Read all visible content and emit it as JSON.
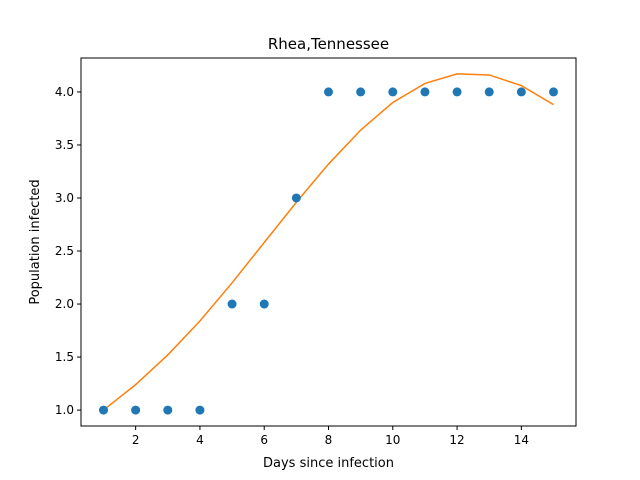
{
  "chart_data": {
    "type": "scatter",
    "title": "Rhea,Tennessee",
    "xlabel": "Days since infection",
    "ylabel": "Population infected",
    "xlim": [
      0.3,
      15.7
    ],
    "ylim": [
      0.85,
      4.32
    ],
    "xticks": [
      2,
      4,
      6,
      8,
      10,
      12,
      14
    ],
    "yticks": [
      1.0,
      1.5,
      2.0,
      2.5,
      3.0,
      3.5,
      4.0
    ],
    "xtick_labels": [
      "2",
      "4",
      "6",
      "8",
      "10",
      "12",
      "14"
    ],
    "ytick_labels": [
      "1.0",
      "1.5",
      "2.0",
      "2.5",
      "3.0",
      "3.5",
      "4.0"
    ],
    "grid": false,
    "legend": "none",
    "series": [
      {
        "type": "scatter",
        "color": "#1f77b4",
        "x": [
          1,
          2,
          3,
          4,
          5,
          6,
          7,
          8,
          9,
          10,
          11,
          12,
          13,
          14,
          15
        ],
        "y": [
          1,
          1,
          1,
          1,
          2,
          2,
          3,
          4,
          4,
          4,
          4,
          4,
          4,
          4,
          4
        ]
      },
      {
        "type": "line",
        "color": "#ff7f0e",
        "x": [
          1,
          2,
          3,
          4,
          5,
          6,
          7,
          8,
          9,
          10,
          11,
          12,
          13,
          14,
          15
        ],
        "y": [
          1.0,
          1.24,
          1.52,
          1.84,
          2.2,
          2.58,
          2.96,
          3.32,
          3.64,
          3.9,
          4.08,
          4.17,
          4.16,
          4.06,
          3.88
        ]
      }
    ]
  }
}
